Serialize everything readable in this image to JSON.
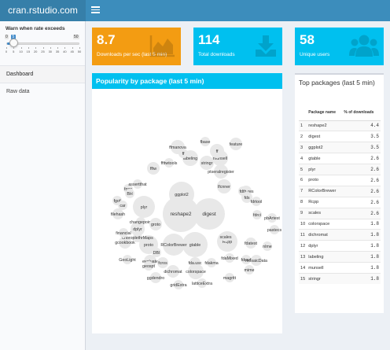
{
  "app": {
    "title": "cran.rstudio.com"
  },
  "sidebar": {
    "slider": {
      "label": "Warn when rate exceeds",
      "min": "0",
      "max": "50",
      "value": "5",
      "ticks": [
        "0",
        "5",
        "10",
        "15",
        "20",
        "25",
        "30",
        "35",
        "40",
        "45",
        "50"
      ]
    },
    "menu": [
      {
        "label": "Dashboard"
      },
      {
        "label": "Raw data"
      }
    ]
  },
  "value_boxes": [
    {
      "value": "8.7",
      "caption": "Downloads per sec (last 5 min)",
      "color": "#f39c12",
      "icon": "area-chart-icon"
    },
    {
      "value": "114",
      "caption": "Total downloads",
      "color": "#00c0ef",
      "icon": "download-icon"
    },
    {
      "value": "58",
      "caption": "Unique users",
      "color": "#00c0ef",
      "icon": "users-icon"
    }
  ],
  "bubble_panel": {
    "title": "Popularity by package (last 5 min)",
    "packages": [
      "reshape2",
      "digest",
      "ggplot2",
      "gtable",
      "plyr",
      "proto",
      "RColorBrewer",
      "Rcpp",
      "scales",
      "colorspace",
      "dichromat",
      "dplyr",
      "labeling",
      "munsell",
      "stringr",
      "ffmanova",
      "fbase",
      "ff",
      "ptseralregister",
      "lfcnner",
      "features",
      "feature",
      "fftw",
      "ffttwtools",
      "fdth",
      "fds",
      "fdrtool",
      "pbArtest",
      "fdrci",
      "pastecs",
      "fdatest",
      "nlme",
      "fdrsvf",
      "fdaMixed",
      "mosaicData",
      "mime",
      "magritt",
      "ggdendro",
      "gridExtra",
      "latticeExtra",
      "ff",
      "fda.usc",
      "fdakma",
      "DBI",
      "evaluate",
      "fcros",
      "geospt",
      "GeoLight",
      "gcookbook",
      "choroplethrMaps",
      "financial",
      "changepoint",
      "filehash",
      "fgof",
      "fgac",
      "assertthat",
      "BH",
      "car",
      "groto"
    ]
  },
  "top_packages": {
    "title": "Top packages (last 5 min)",
    "columns": [
      "",
      "Package name",
      "% of downloads"
    ],
    "rows": [
      {
        "rank": "1",
        "name": "reshape2",
        "pct": "4.4"
      },
      {
        "rank": "2",
        "name": "digest",
        "pct": "3.5"
      },
      {
        "rank": "3",
        "name": "ggplot2",
        "pct": "3.5"
      },
      {
        "rank": "4",
        "name": "gtable",
        "pct": "2.6"
      },
      {
        "rank": "5",
        "name": "plyr",
        "pct": "2.6"
      },
      {
        "rank": "6",
        "name": "proto",
        "pct": "2.6"
      },
      {
        "rank": "7",
        "name": "RColorBrewer",
        "pct": "2.6"
      },
      {
        "rank": "8",
        "name": "Rcpp",
        "pct": "2.6"
      },
      {
        "rank": "9",
        "name": "scales",
        "pct": "2.6"
      },
      {
        "rank": "10",
        "name": "colorspace",
        "pct": "1.8"
      },
      {
        "rank": "11",
        "name": "dichromat",
        "pct": "1.8"
      },
      {
        "rank": "12",
        "name": "dplyr",
        "pct": "1.8"
      },
      {
        "rank": "13",
        "name": "labeling",
        "pct": "1.8"
      },
      {
        "rank": "14",
        "name": "munsell",
        "pct": "1.8"
      },
      {
        "rank": "15",
        "name": "stringr",
        "pct": "1.8"
      }
    ]
  }
}
